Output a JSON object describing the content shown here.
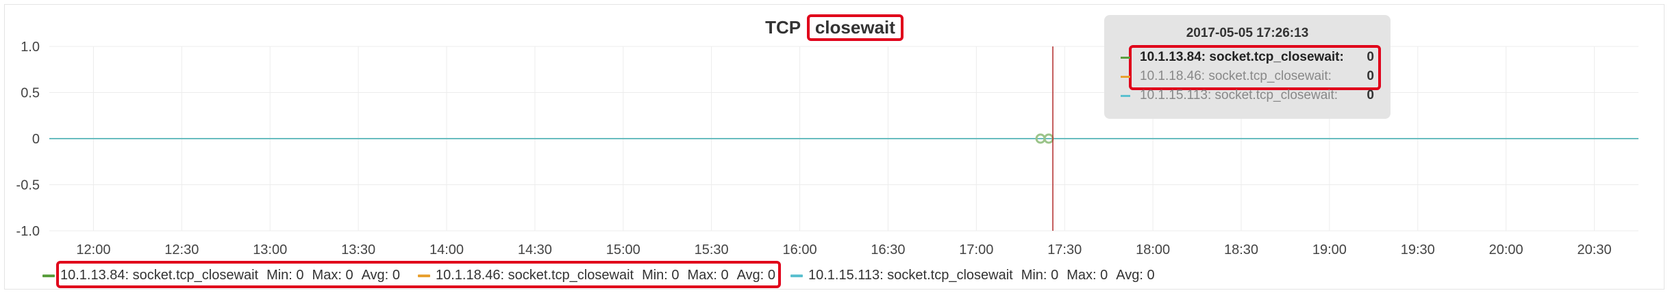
{
  "panel": {
    "title_prefix": "TCP",
    "title_highlight": "closewait"
  },
  "colors": {
    "series1": "#5a9e3e",
    "series2": "#e8a030",
    "series3": "#5bc0cf",
    "cursor": "#b22a2a",
    "highlight_box": "#e0001a",
    "grid": "#ececec"
  },
  "chart_data": {
    "type": "line",
    "title": "TCP closewait",
    "xlabel": "",
    "ylabel": "",
    "x_ticks": [
      "12:00",
      "12:30",
      "13:00",
      "13:30",
      "14:00",
      "14:30",
      "15:00",
      "15:30",
      "16:00",
      "16:30",
      "17:00",
      "17:30",
      "18:00",
      "18:30",
      "19:00",
      "19:30",
      "20:00",
      "20:30"
    ],
    "xlim": [
      "11:45",
      "20:45"
    ],
    "y_ticks": [
      "1.0",
      "0.5",
      "0",
      "-0.5",
      "-1.0"
    ],
    "ylim": [
      -1.0,
      1.0
    ],
    "grid": true,
    "legend_position": "bottom",
    "series": [
      {
        "name": "10.1.13.84: socket.tcp_closewait",
        "x": [
          "11:45",
          "20:45"
        ],
        "values": [
          0,
          0
        ],
        "min": "0",
        "max": "0",
        "avg": "0"
      },
      {
        "name": "10.1.18.46: socket.tcp_closewait",
        "x": [
          "11:45",
          "20:45"
        ],
        "values": [
          0,
          0
        ],
        "min": "0",
        "max": "0",
        "avg": "0"
      },
      {
        "name": "10.1.15.113: socket.tcp_closewait",
        "x": [
          "11:45",
          "20:45"
        ],
        "values": [
          0,
          0
        ],
        "min": "0",
        "max": "0",
        "avg": "0"
      }
    ],
    "cursor_time": "17:26"
  },
  "tooltip": {
    "time": "2017-05-05 17:26:13",
    "rows": [
      {
        "label": "10.1.13.84: socket.tcp_closewait:",
        "value": "0"
      },
      {
        "label": "10.1.18.46: socket.tcp_closewait:",
        "value": "0"
      },
      {
        "label": "10.1.15.113: socket.tcp_closewait:",
        "value": "0"
      }
    ]
  },
  "legend": {
    "min_label": "Min:",
    "max_label": "Max:",
    "avg_label": "Avg:"
  }
}
